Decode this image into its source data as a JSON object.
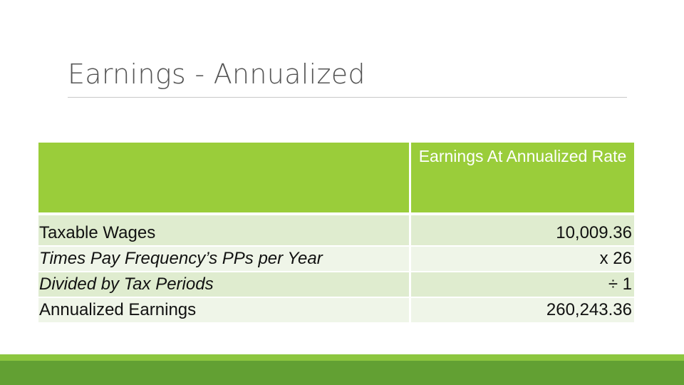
{
  "title": "Earnings - Annualized",
  "table": {
    "header": {
      "col1": "",
      "col2": "Earnings At Annualized Rate"
    },
    "rows": [
      {
        "label": "Taxable Wages",
        "value": "10,009.36",
        "italic": false
      },
      {
        "label": "Times Pay Frequency’s PPs per Year",
        "value": "x 26",
        "italic": true
      },
      {
        "label": "Divided by Tax Periods",
        "value": "÷ 1",
        "italic": true
      },
      {
        "label": "Annualized Earnings",
        "value": "260,243.36",
        "italic": false
      }
    ]
  },
  "colors": {
    "header_green": "#9acd3a",
    "row_light_green": "#dfeccf",
    "row_pale_green": "#eff5e8",
    "footer_light_green": "#8cc63f",
    "footer_dark_green": "#62a033"
  }
}
